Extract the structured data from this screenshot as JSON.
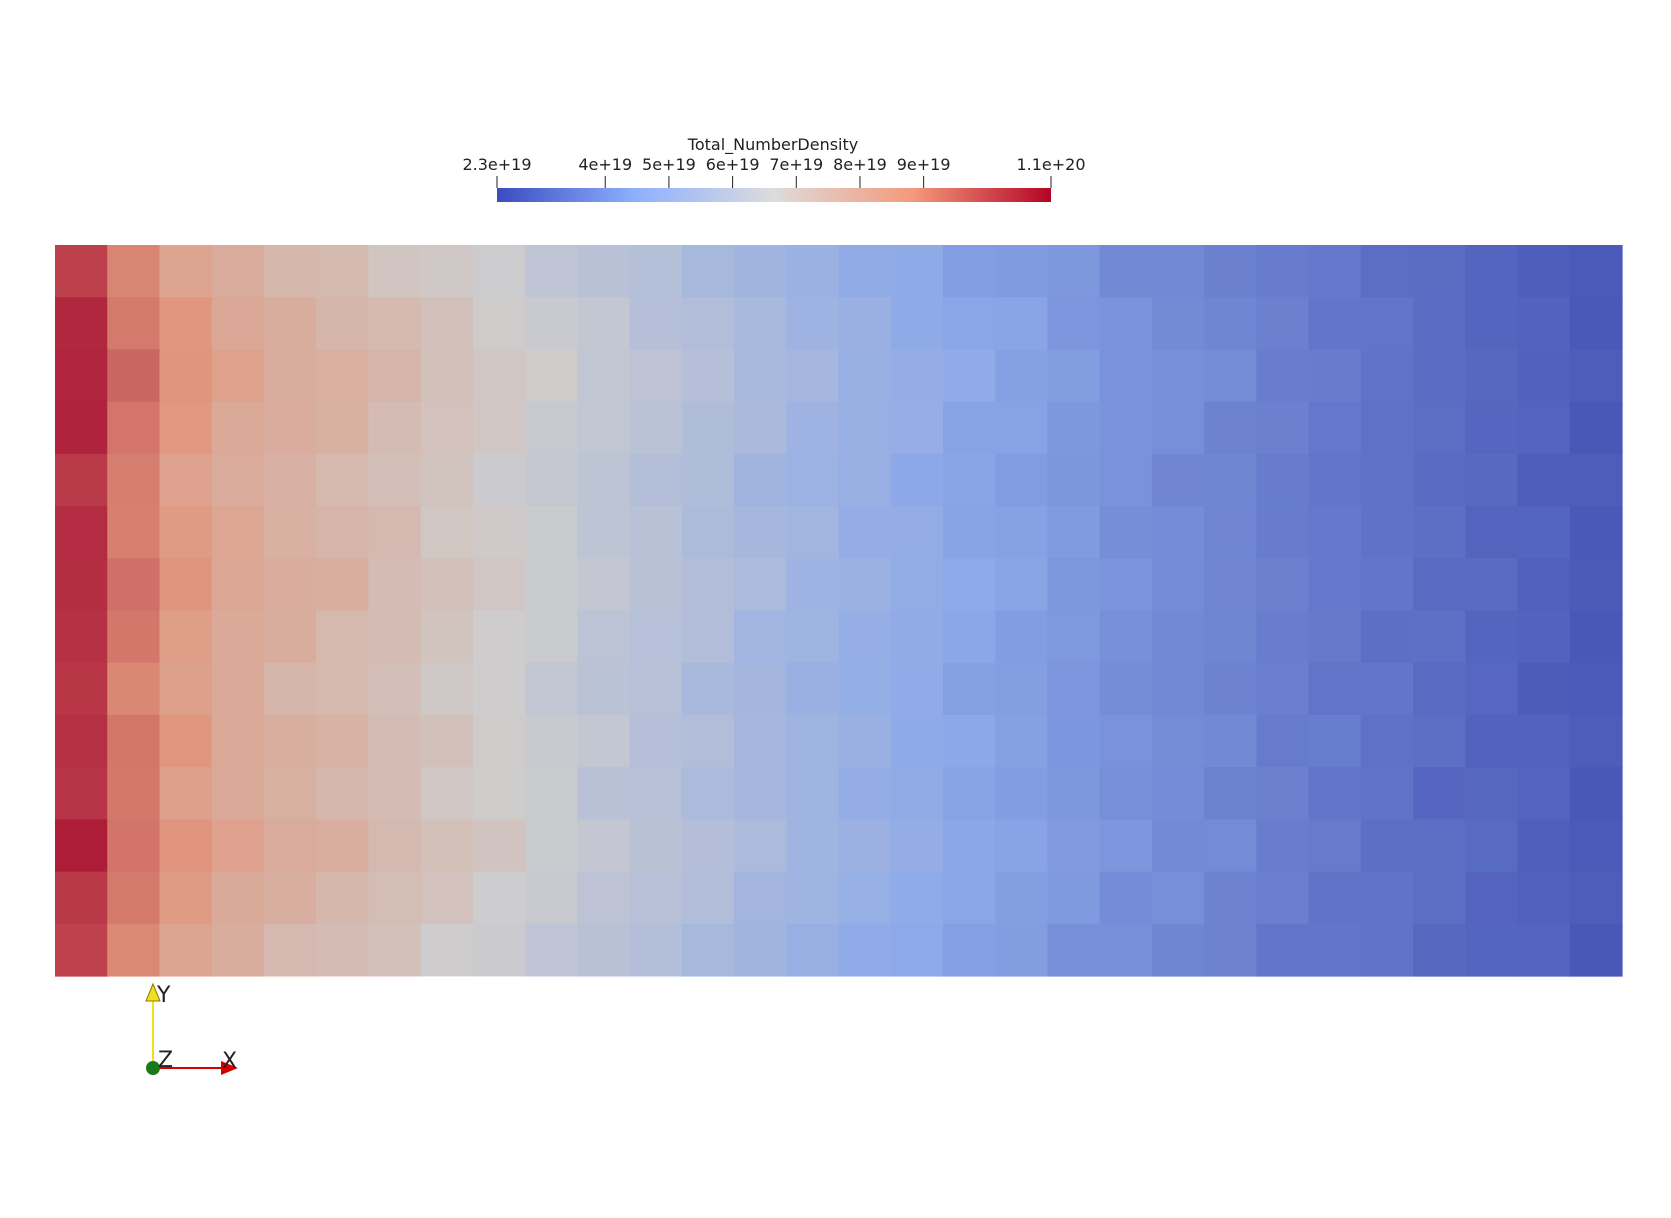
{
  "chart_data": {
    "type": "heatmap",
    "title": "Total_NumberDensity",
    "colormap": "cool-to-warm",
    "range": [
      2.3e+19,
      1.1e+20
    ],
    "colorbar": {
      "title": "Total_NumberDensity",
      "placement": "top-center",
      "ticks": [
        {
          "value": 2.3e+19,
          "label": "2.3e+19"
        },
        {
          "value": 4e+19,
          "label": "4e+19"
        },
        {
          "value": 5e+19,
          "label": "5e+19"
        },
        {
          "value": 6e+19,
          "label": "6e+19"
        },
        {
          "value": 7e+19,
          "label": "7e+19"
        },
        {
          "value": 8e+19,
          "label": "8e+19"
        },
        {
          "value": 9e+19,
          "label": "9e+19"
        },
        {
          "value": 1.1e+20,
          "label": "1.1e+20"
        }
      ]
    },
    "grid": {
      "columns": 30,
      "rows": 14,
      "column_values_e19": [
        10.6,
        9.3,
        8.6,
        8.1,
        7.8,
        7.6,
        7.3,
        7.0,
        6.7,
        6.4,
        6.1,
        5.85,
        5.6,
        5.3,
        5.05,
        4.8,
        4.6,
        4.35,
        4.2,
        4.0,
        3.8,
        3.65,
        3.5,
        3.3,
        3.15,
        3.0,
        2.85,
        2.7,
        2.55,
        2.35
      ],
      "row_perturbation_e19": [
        -0.25,
        0.1,
        0.3,
        0.15,
        -0.1,
        0.05,
        0.2,
        0.0,
        -0.15,
        0.1,
        -0.05,
        0.25,
        0.0,
        -0.3
      ],
      "column_offsets_e19": [
        0.0,
        0.15,
        -0.1,
        0.2,
        -0.05,
        0.1,
        -0.2,
        0.05,
        0.15,
        -0.1,
        0.0,
        0.2,
        -0.15,
        0.05,
        0.1,
        -0.05,
        0.15,
        -0.1,
        0.0,
        0.2,
        -0.15,
        0.1,
        -0.05,
        0.05,
        0.15,
        -0.1,
        0.1,
        0.0,
        -0.05,
        0.05
      ]
    }
  },
  "axes_triad": {
    "x_label": "X",
    "y_label": "Y",
    "z_label": "Z",
    "x_color": "#d40000",
    "y_color": "#f0e020",
    "z_color": "#1a7a1a"
  }
}
